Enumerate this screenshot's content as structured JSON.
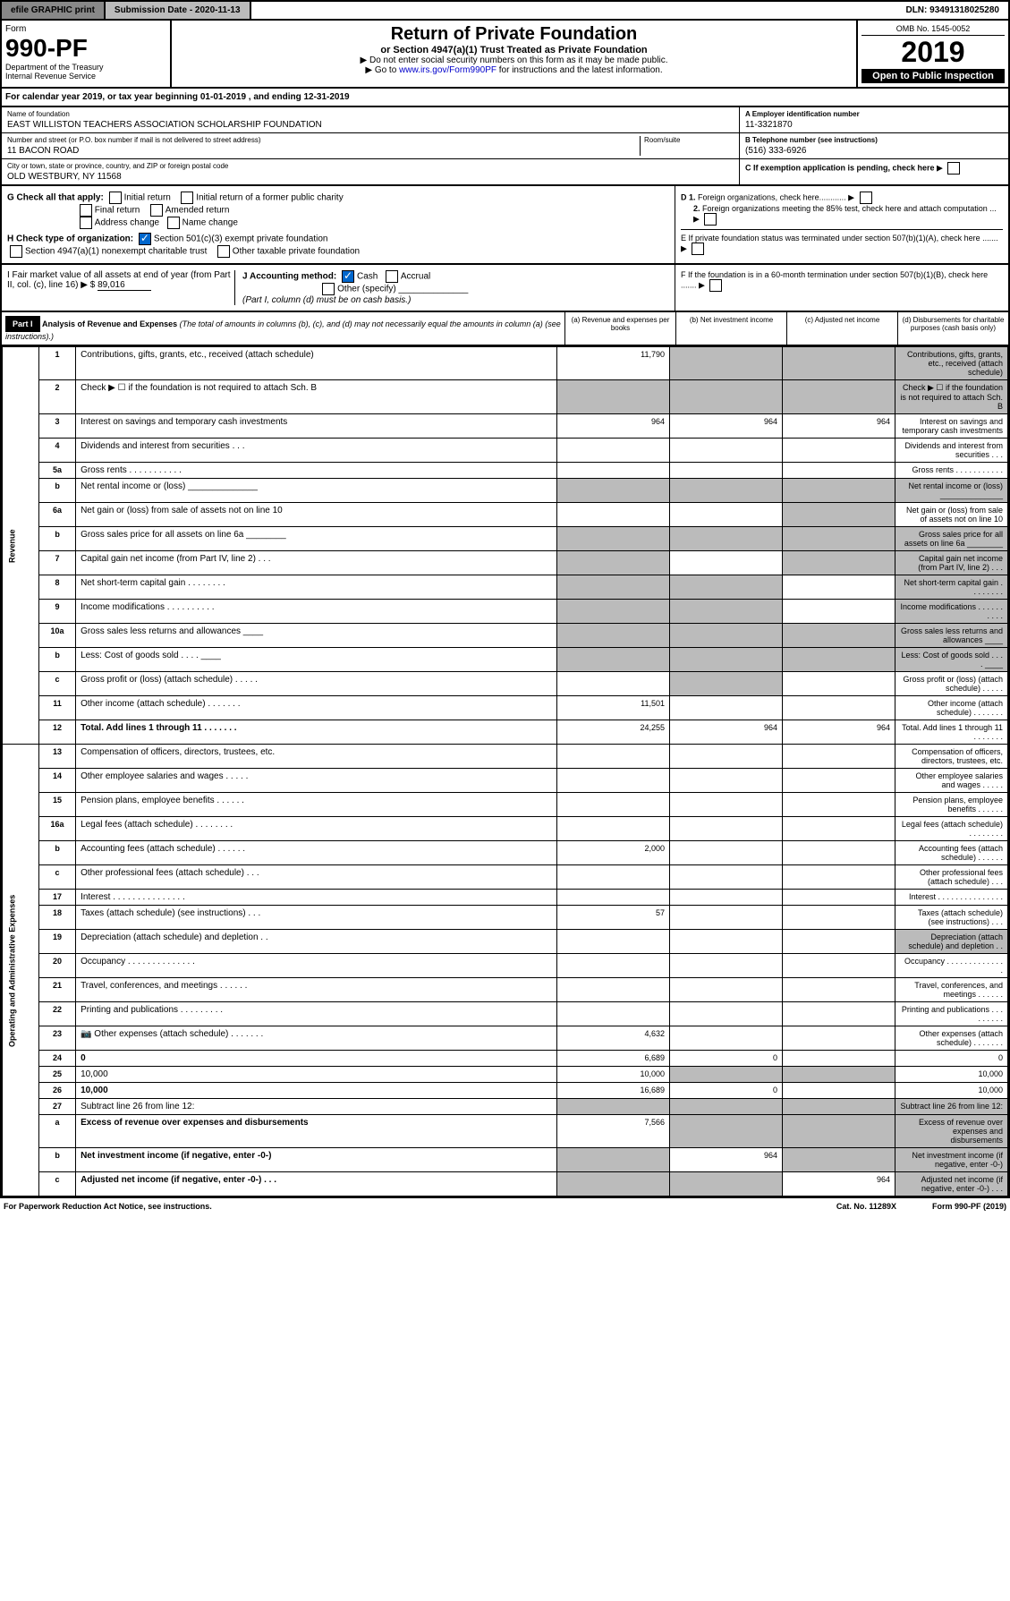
{
  "top": {
    "efile": "efile GRAPHIC print",
    "sublabel": "Submission Date - 2020-11-13",
    "dln": "DLN: 93491318025280"
  },
  "hdr": {
    "form": "Form",
    "num": "990-PF",
    "dept": "Department of the Treasury",
    "irs": "Internal Revenue Service",
    "title": "Return of Private Foundation",
    "sub": "or Section 4947(a)(1) Trust Treated as Private Foundation",
    "note1": "▶ Do not enter social security numbers on this form as it may be made public.",
    "note2": "▶ Go to www.irs.gov/Form990PF for instructions and the latest information.",
    "omb": "OMB No. 1545-0052",
    "year": "2019",
    "open": "Open to Public Inspection"
  },
  "cal": "For calendar year 2019, or tax year beginning 01-01-2019          , and ending 12-31-2019",
  "info": {
    "name_lbl": "Name of foundation",
    "name": "EAST WILLISTON TEACHERS ASSOCIATION SCHOLARSHIP FOUNDATION",
    "addr_lbl": "Number and street (or P.O. box number if mail is not delivered to street address)",
    "addr": "11 BACON ROAD",
    "room": "Room/suite",
    "city_lbl": "City or town, state or province, country, and ZIP or foreign postal code",
    "city": "OLD WESTBURY, NY  11568",
    "ein_lbl": "A Employer identification number",
    "ein": "11-3321870",
    "tel_lbl": "B Telephone number (see instructions)",
    "tel": "(516) 333-6926",
    "c": "C If exemption application is pending, check here"
  },
  "g": {
    "lbl": "G Check all that apply:",
    "initial": "Initial return",
    "initial2": "Initial return of a former public charity",
    "final": "Final return",
    "amended": "Amended return",
    "addr": "Address change",
    "name": "Name change"
  },
  "h": {
    "lbl": "H Check type of organization:",
    "s1": "Section 501(c)(3) exempt private foundation",
    "s2": "Section 4947(a)(1) nonexempt charitable trust",
    "s3": "Other taxable private foundation"
  },
  "d": {
    "d1": "D 1. Foreign organizations, check here............",
    "d2": "2. Foreign organizations meeting the 85% test, check here and attach computation ...",
    "e": "E  If private foundation status was terminated under section 507(b)(1)(A), check here .......",
    "f": "F  If the foundation is in a 60-month termination under section 507(b)(1)(B), check here ......."
  },
  "i": {
    "lbl": "I Fair market value of all assets at end of year (from Part II, col. (c), line 16) ▶ $",
    "val": "89,016"
  },
  "j": {
    "lbl": "J Accounting method:",
    "cash": "Cash",
    "accrual": "Accrual",
    "other": "Other (specify)",
    "note": "(Part I, column (d) must be on cash basis.)"
  },
  "part1": {
    "hdr": "Part I",
    "title": "Analysis of Revenue and Expenses",
    "sub": "(The total of amounts in columns (b), (c), and (d) may not necessarily equal the amounts in column (a) (see instructions).)",
    "cols": [
      "(a)   Revenue and expenses per books",
      "(b)  Net investment income",
      "(c)  Adjusted net income",
      "(d)  Disbursements for charitable purposes (cash basis only)"
    ]
  },
  "rev_label": "Revenue",
  "exp_label": "Operating and Administrative Expenses",
  "rows": {
    "1": {
      "n": "1",
      "d": "Contributions, gifts, grants, etc., received (attach schedule)",
      "a": "11,790",
      "grey": [
        "b",
        "c",
        "d"
      ]
    },
    "2": {
      "n": "2",
      "d": "Check ▶ ☐ if the foundation is not required to attach Sch. B",
      "grey": [
        "a",
        "b",
        "c",
        "d"
      ]
    },
    "3": {
      "n": "3",
      "d": "Interest on savings and temporary cash investments",
      "a": "964",
      "b": "964",
      "c": "964"
    },
    "4": {
      "n": "4",
      "d": "Dividends and interest from securities  .  .  ."
    },
    "5a": {
      "n": "5a",
      "d": "Gross rents  .  .  .  .  .  .  .  .  .  .  ."
    },
    "5b": {
      "n": "b",
      "d": "Net rental income or (loss)  ______________",
      "grey": [
        "a",
        "b",
        "c",
        "d"
      ]
    },
    "6a": {
      "n": "6a",
      "d": "Net gain or (loss) from sale of assets not on line 10",
      "grey": [
        "c"
      ]
    },
    "6b": {
      "n": "b",
      "d": "Gross sales price for all assets on line 6a ________",
      "grey": [
        "a",
        "b",
        "c",
        "d"
      ]
    },
    "7": {
      "n": "7",
      "d": "Capital gain net income (from Part IV, line 2)  .  .  .",
      "grey": [
        "a",
        "c",
        "d"
      ]
    },
    "8": {
      "n": "8",
      "d": "Net short-term capital gain  .  .  .  .  .  .  .  .",
      "grey": [
        "a",
        "b",
        "d"
      ]
    },
    "9": {
      "n": "9",
      "d": "Income modifications  .  .  .  .  .  .  .  .  .  .",
      "grey": [
        "a",
        "b",
        "d"
      ]
    },
    "10a": {
      "n": "10a",
      "d": "Gross sales less returns and allowances  ____",
      "grey": [
        "a",
        "b",
        "c",
        "d"
      ]
    },
    "10b": {
      "n": "b",
      "d": "Less: Cost of goods sold  .  .  .  .  ____",
      "grey": [
        "a",
        "b",
        "c",
        "d"
      ]
    },
    "10c": {
      "n": "c",
      "d": "Gross profit or (loss) (attach schedule)  .  .  .  .  .",
      "grey": [
        "b"
      ]
    },
    "11": {
      "n": "11",
      "d": "Other income (attach schedule)  .  .  .  .  .  .  .",
      "a": "11,501"
    },
    "12": {
      "n": "12",
      "d": "Total. Add lines 1 through 11  .  .  .  .  .  .  .",
      "a": "24,255",
      "b": "964",
      "c": "964",
      "bold": true
    },
    "13": {
      "n": "13",
      "d": "Compensation of officers, directors, trustees, etc."
    },
    "14": {
      "n": "14",
      "d": "Other employee salaries and wages  .  .  .  .  ."
    },
    "15": {
      "n": "15",
      "d": "Pension plans, employee benefits  .  .  .  .  .  ."
    },
    "16a": {
      "n": "16a",
      "d": "Legal fees (attach schedule)  .  .  .  .  .  .  .  ."
    },
    "16b": {
      "n": "b",
      "d": "Accounting fees (attach schedule)  .  .  .  .  .  .",
      "a": "2,000"
    },
    "16c": {
      "n": "c",
      "d": "Other professional fees (attach schedule)  .  .  ."
    },
    "17": {
      "n": "17",
      "d": "Interest  .  .  .  .  .  .  .  .  .  .  .  .  .  .  ."
    },
    "18": {
      "n": "18",
      "d": "Taxes (attach schedule) (see instructions)  .  .  .",
      "a": "57"
    },
    "19": {
      "n": "19",
      "d": "Depreciation (attach schedule) and depletion  .  .",
      "grey": [
        "d"
      ]
    },
    "20": {
      "n": "20",
      "d": "Occupancy  .  .  .  .  .  .  .  .  .  .  .  .  .  ."
    },
    "21": {
      "n": "21",
      "d": "Travel, conferences, and meetings  .  .  .  .  .  ."
    },
    "22": {
      "n": "22",
      "d": "Printing and publications  .  .  .  .  .  .  .  .  ."
    },
    "23": {
      "n": "23",
      "d": "Other expenses (attach schedule)  .  .  .  .  .  .  .",
      "a": "4,632",
      "icon": true
    },
    "24": {
      "n": "24",
      "d": "0",
      "a": "6,689",
      "b": "0",
      "bold": true
    },
    "25": {
      "n": "25",
      "d": "10,000",
      "a": "10,000",
      "grey": [
        "b",
        "c"
      ]
    },
    "26": {
      "n": "26",
      "d": "10,000",
      "a": "16,689",
      "b": "0",
      "bold": true
    },
    "27": {
      "n": "27",
      "d": "Subtract line 26 from line 12:",
      "grey": [
        "a",
        "b",
        "c",
        "d"
      ]
    },
    "27a": {
      "n": "a",
      "d": "Excess of revenue over expenses and disbursements",
      "a": "7,566",
      "grey": [
        "b",
        "c",
        "d"
      ],
      "bold": true
    },
    "27b": {
      "n": "b",
      "d": "Net investment income (if negative, enter -0-)",
      "b": "964",
      "grey": [
        "a",
        "c",
        "d"
      ],
      "bold": true
    },
    "27c": {
      "n": "c",
      "d": "Adjusted net income (if negative, enter -0-)  .  .  .",
      "c": "964",
      "grey": [
        "a",
        "b",
        "d"
      ],
      "bold": true
    }
  },
  "footer": {
    "a": "For Paperwork Reduction Act Notice, see instructions.",
    "b": "Cat. No. 11289X",
    "c": "Form 990-PF (2019)"
  }
}
